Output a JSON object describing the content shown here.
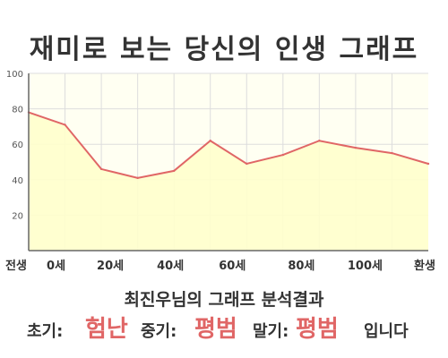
{
  "title": "재미로 보는 당신의 인생 그래프",
  "chart_data": {
    "type": "area",
    "title": "재미로 보는 당신의 인생 그래프",
    "xlabel": "",
    "ylabel": "",
    "ylim": [
      0,
      100
    ],
    "y_ticks": [
      20,
      40,
      60,
      80,
      100
    ],
    "x_ticks": [
      "전생",
      "0세",
      "20세",
      "40세",
      "60세",
      "80세",
      "100세",
      "환생"
    ],
    "x": [
      "0세",
      "",
      "20세",
      "",
      "40세",
      "",
      "60세",
      "",
      "80세",
      "",
      "100세",
      "환생"
    ],
    "series": [
      {
        "values": [
          78,
          71,
          46,
          41,
          45,
          62,
          49,
          54,
          62,
          58,
          55,
          49
        ]
      }
    ],
    "grid": true,
    "legend": "none",
    "colors": {
      "line": "#e06666",
      "fill": "#ffffcc",
      "grid": "#dddddd",
      "axis": "#666666"
    }
  },
  "summary": "최진우님의 그래프 분석결과",
  "verdict": {
    "early_label": "초기:",
    "early_value": "험난",
    "middle_label": "중기:",
    "middle_value": "평범",
    "late_label": "말기:",
    "late_value": "평범",
    "ending": "입니다"
  },
  "colors": {
    "highlight": "#e06666",
    "text": "#333333"
  }
}
